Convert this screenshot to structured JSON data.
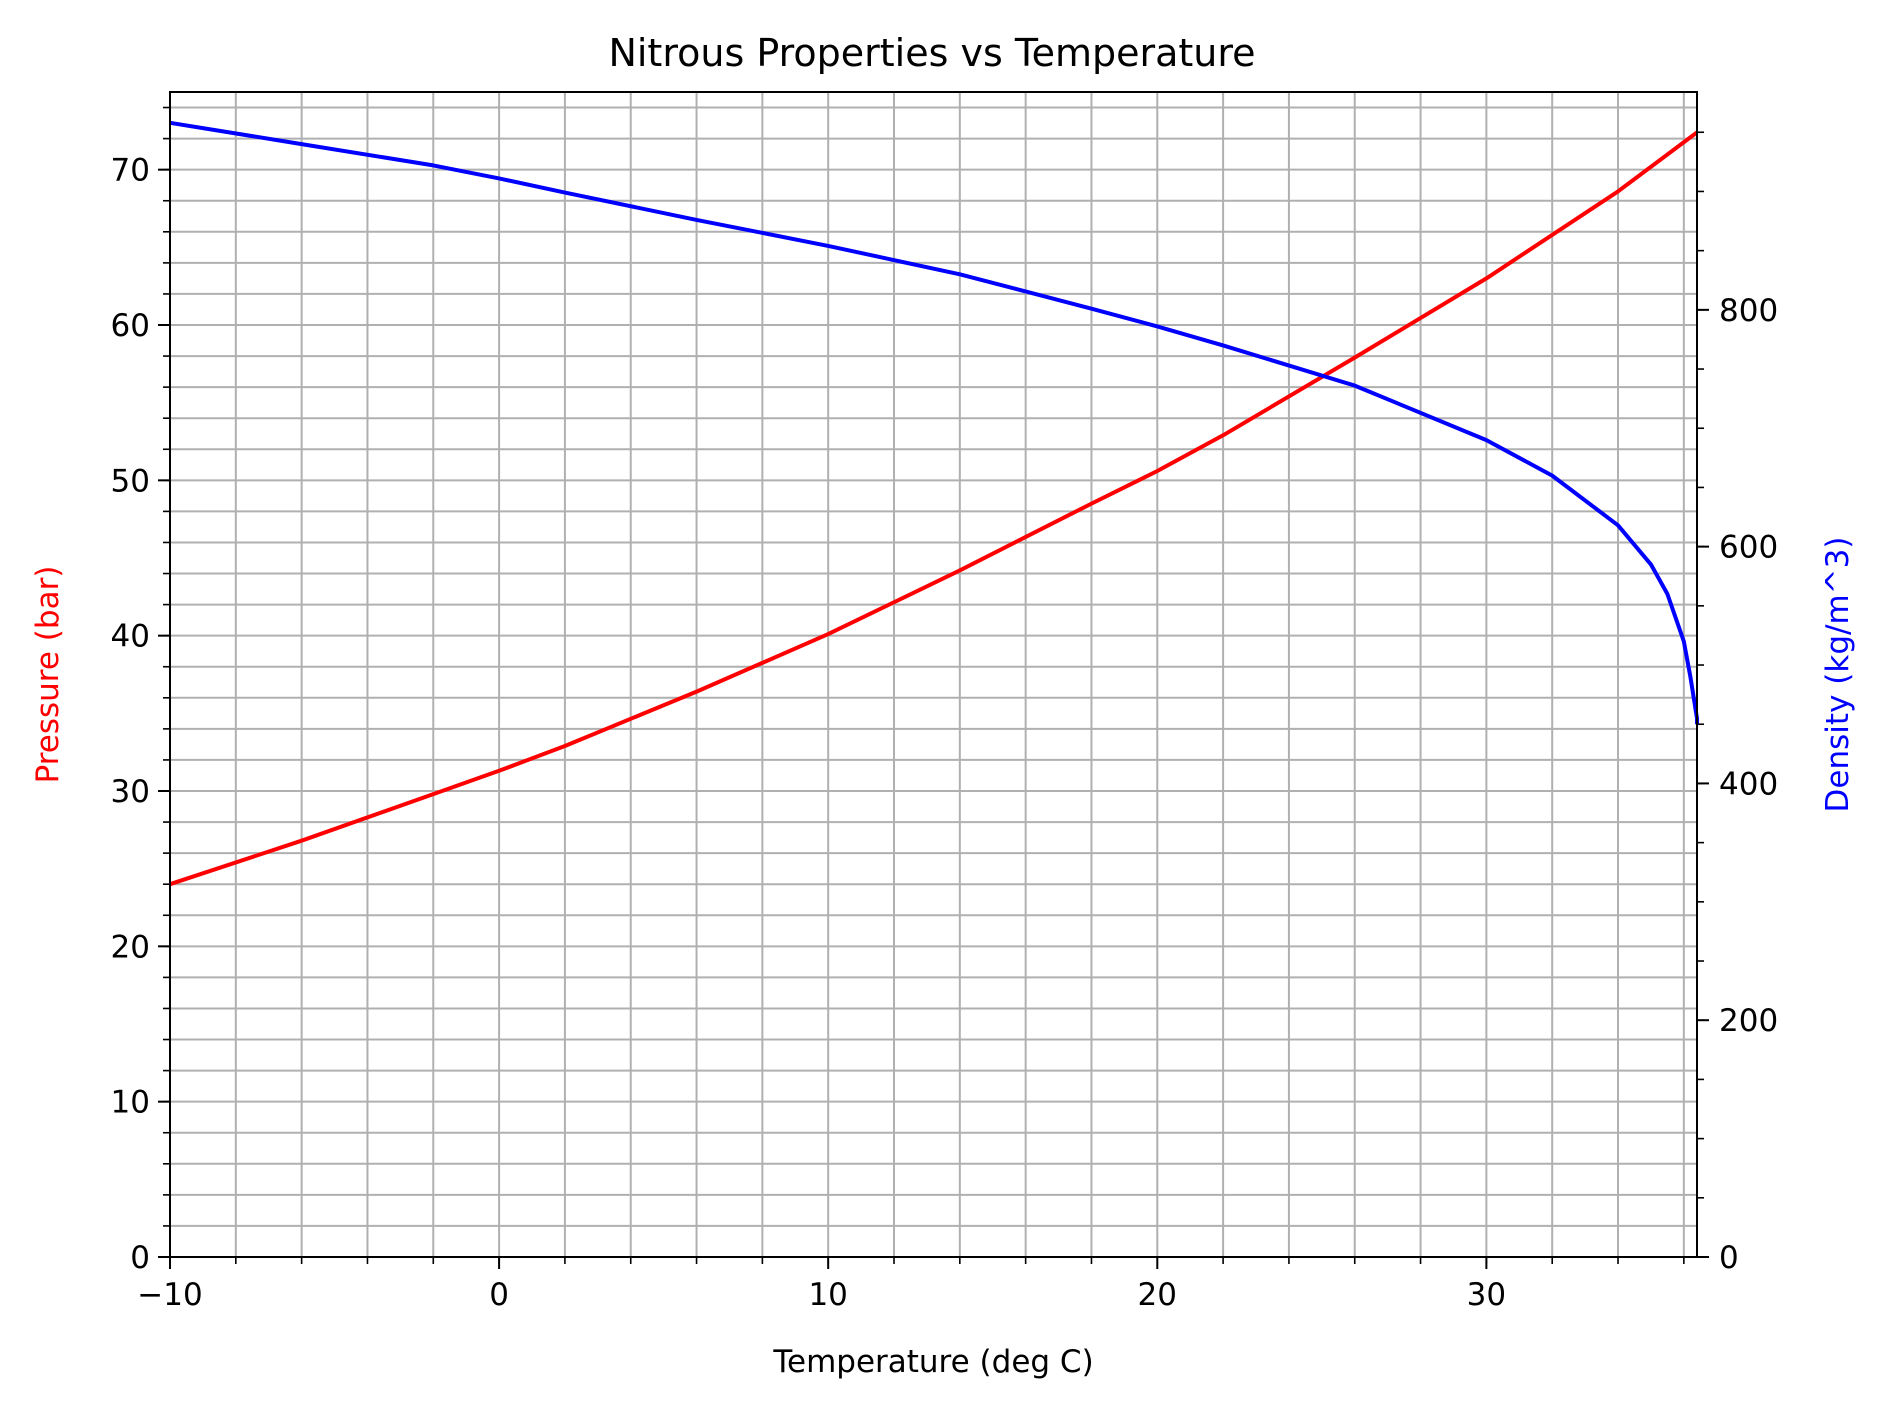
{
  "chart_data": {
    "type": "line",
    "title": "Nitrous Properties vs Temperature",
    "xlabel": "Temperature (deg C)",
    "ylabel_left": "Pressure (bar)",
    "ylabel_right": "Density (kg/m^3)",
    "xlim": [
      -10,
      36.4
    ],
    "ylim_left": [
      0,
      75
    ],
    "ylim_right": [
      0,
      984
    ],
    "x_ticks": [
      {
        "value": -10,
        "label": "−10"
      },
      {
        "value": 0,
        "label": "0"
      },
      {
        "value": 10,
        "label": "10"
      },
      {
        "value": 20,
        "label": "20"
      },
      {
        "value": 30,
        "label": "30"
      }
    ],
    "x_minor_step": 2,
    "y_left_ticks": [
      {
        "value": 0,
        "label": "0"
      },
      {
        "value": 10,
        "label": "10"
      },
      {
        "value": 20,
        "label": "20"
      },
      {
        "value": 30,
        "label": "30"
      },
      {
        "value": 40,
        "label": "40"
      },
      {
        "value": 50,
        "label": "50"
      },
      {
        "value": 60,
        "label": "60"
      },
      {
        "value": 70,
        "label": "70"
      }
    ],
    "y_left_minor_step": 2,
    "y_right_ticks": [
      {
        "value": 0,
        "label": "0"
      },
      {
        "value": 200,
        "label": "200"
      },
      {
        "value": 400,
        "label": "400"
      },
      {
        "value": 600,
        "label": "600"
      },
      {
        "value": 800,
        "label": "800"
      }
    ],
    "y_right_minor_step": 50,
    "grid": true,
    "series": [
      {
        "axis": "left",
        "color": "#ff0000",
        "x": [
          -10,
          -6,
          -2,
          0,
          2,
          6,
          10,
          14,
          18,
          20,
          22,
          26,
          30,
          34,
          36.4
        ],
        "y": [
          24.0,
          26.8,
          29.8,
          31.3,
          32.9,
          36.4,
          40.1,
          44.2,
          48.5,
          50.6,
          52.9,
          57.9,
          63.0,
          68.6,
          72.4
        ]
      },
      {
        "axis": "right",
        "color": "#0000ff",
        "x": [
          -10,
          -6,
          -2,
          0,
          2,
          6,
          10,
          14,
          18,
          20,
          22,
          26,
          30,
          32,
          34,
          35,
          35.5,
          36,
          36.2,
          36.4,
          36.4
        ],
        "y": [
          958,
          940,
          922,
          911,
          899,
          876,
          854,
          830,
          801,
          786,
          770,
          736,
          690,
          660,
          618,
          585,
          560,
          520,
          490,
          455,
          450
        ]
      }
    ]
  }
}
